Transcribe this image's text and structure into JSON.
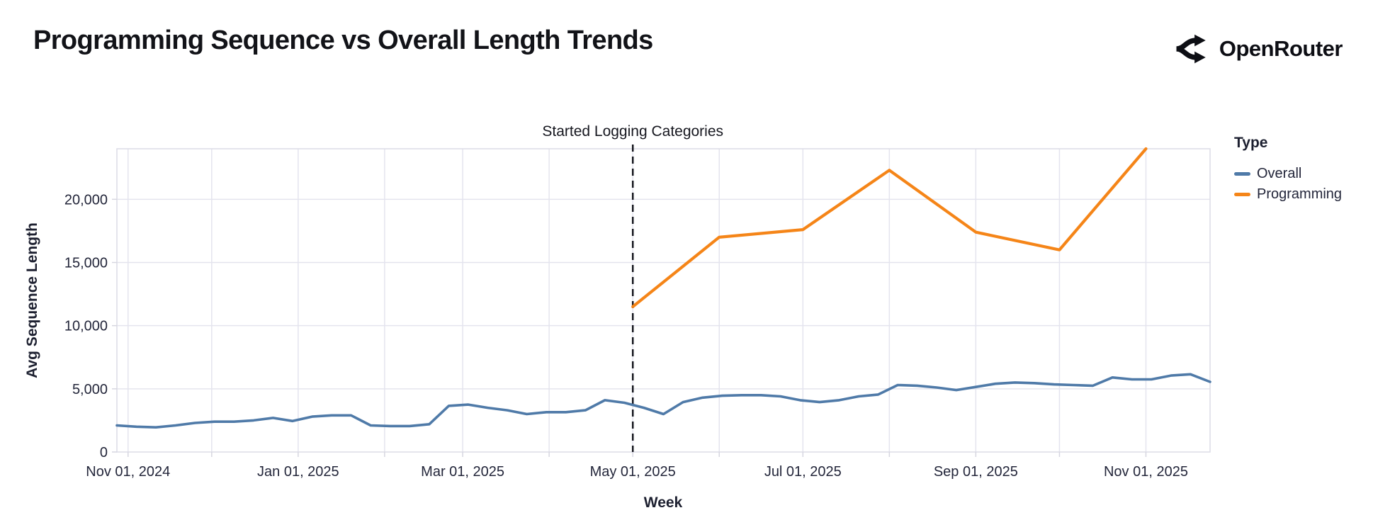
{
  "header": {
    "title": "Programming Sequence vs Overall Length Trends",
    "brand": "OpenRouter"
  },
  "chart_data": {
    "type": "line",
    "title": "Programming Sequence vs Overall Length Trends",
    "xlabel": "Week",
    "ylabel": "Avg Sequence Length",
    "ylim": [
      0,
      24000
    ],
    "x_domain": [
      "2024-10-28",
      "2025-11-24"
    ],
    "grid": true,
    "y_ticks": [
      {
        "value": 0,
        "label": "0"
      },
      {
        "value": 5000,
        "label": "5,000"
      },
      {
        "value": 10000,
        "label": "10,000"
      },
      {
        "value": 15000,
        "label": "15,000"
      },
      {
        "value": 20000,
        "label": "20,000"
      }
    ],
    "x_ticks": [
      {
        "date": "2024-11-01",
        "label": "Nov 01, 2024"
      },
      {
        "date": "2025-01-01",
        "label": "Jan 01, 2025"
      },
      {
        "date": "2025-03-01",
        "label": "Mar 01, 2025"
      },
      {
        "date": "2025-05-01",
        "label": "May 01, 2025"
      },
      {
        "date": "2025-07-01",
        "label": "Jul 01, 2025"
      },
      {
        "date": "2025-09-01",
        "label": "Sep 01, 2025"
      },
      {
        "date": "2025-11-01",
        "label": "Nov 01, 2025"
      }
    ],
    "x_grid_months": [
      "2024-11-01",
      "2024-12-01",
      "2025-01-01",
      "2025-02-01",
      "2025-03-01",
      "2025-04-01",
      "2025-05-01",
      "2025-06-01",
      "2025-07-01",
      "2025-08-01",
      "2025-09-01",
      "2025-10-01",
      "2025-11-01"
    ],
    "annotation": {
      "label": "Started Logging Categories",
      "date": "2025-05-01"
    },
    "legend": {
      "title": "Type",
      "position": "right",
      "items": [
        {
          "label": "Overall",
          "color": "#4f7aa8"
        },
        {
          "label": "Programming",
          "color": "#f58518"
        }
      ]
    },
    "series": [
      {
        "name": "Overall",
        "color": "#4f7aa8",
        "points": [
          [
            "2024-10-28",
            2100
          ],
          [
            "2024-11-04",
            2000
          ],
          [
            "2024-11-11",
            1950
          ],
          [
            "2024-11-18",
            2100
          ],
          [
            "2024-11-25",
            2300
          ],
          [
            "2024-12-02",
            2400
          ],
          [
            "2024-12-09",
            2400
          ],
          [
            "2024-12-16",
            2500
          ],
          [
            "2024-12-23",
            2700
          ],
          [
            "2024-12-30",
            2450
          ],
          [
            "2025-01-06",
            2800
          ],
          [
            "2025-01-13",
            2900
          ],
          [
            "2025-01-20",
            2900
          ],
          [
            "2025-01-27",
            2100
          ],
          [
            "2025-02-03",
            2050
          ],
          [
            "2025-02-10",
            2050
          ],
          [
            "2025-02-17",
            2200
          ],
          [
            "2025-02-24",
            3650
          ],
          [
            "2025-03-03",
            3750
          ],
          [
            "2025-03-10",
            3500
          ],
          [
            "2025-03-17",
            3300
          ],
          [
            "2025-03-24",
            3000
          ],
          [
            "2025-03-31",
            3150
          ],
          [
            "2025-04-07",
            3150
          ],
          [
            "2025-04-14",
            3300
          ],
          [
            "2025-04-21",
            4100
          ],
          [
            "2025-04-28",
            3900
          ],
          [
            "2025-05-05",
            3500
          ],
          [
            "2025-05-12",
            3000
          ],
          [
            "2025-05-19",
            3950
          ],
          [
            "2025-05-26",
            4300
          ],
          [
            "2025-06-02",
            4450
          ],
          [
            "2025-06-09",
            4500
          ],
          [
            "2025-06-16",
            4500
          ],
          [
            "2025-06-23",
            4400
          ],
          [
            "2025-06-30",
            4100
          ],
          [
            "2025-07-07",
            3950
          ],
          [
            "2025-07-14",
            4100
          ],
          [
            "2025-07-21",
            4400
          ],
          [
            "2025-07-28",
            4550
          ],
          [
            "2025-08-04",
            5300
          ],
          [
            "2025-08-11",
            5250
          ],
          [
            "2025-08-18",
            5100
          ],
          [
            "2025-08-25",
            4900
          ],
          [
            "2025-09-01",
            5150
          ],
          [
            "2025-09-08",
            5400
          ],
          [
            "2025-09-15",
            5500
          ],
          [
            "2025-09-22",
            5450
          ],
          [
            "2025-09-29",
            5350
          ],
          [
            "2025-10-06",
            5300
          ],
          [
            "2025-10-13",
            5250
          ],
          [
            "2025-10-20",
            5900
          ],
          [
            "2025-10-27",
            5750
          ],
          [
            "2025-11-03",
            5750
          ],
          [
            "2025-11-10",
            6050
          ],
          [
            "2025-11-17",
            6150
          ],
          [
            "2025-11-24",
            5550
          ]
        ]
      },
      {
        "name": "Programming",
        "color": "#f58518",
        "points": [
          [
            "2025-05-01",
            11500
          ],
          [
            "2025-06-01",
            17000
          ],
          [
            "2025-07-01",
            17600
          ],
          [
            "2025-08-01",
            22300
          ],
          [
            "2025-09-01",
            17400
          ],
          [
            "2025-10-01",
            16000
          ],
          [
            "2025-11-01",
            24000
          ]
        ]
      }
    ]
  }
}
